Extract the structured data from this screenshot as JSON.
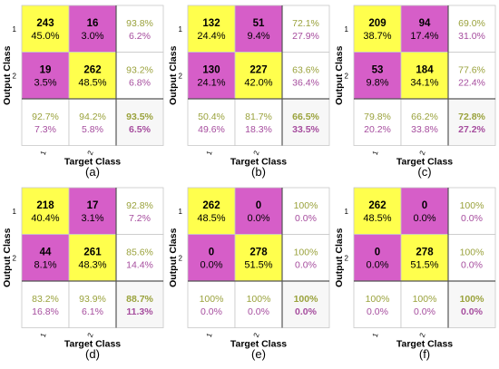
{
  "colors": {
    "correct": "#ffff4d",
    "wrong": "#d65ec8",
    "summary_bg": "#ffffff",
    "total_bg": "#f7f7f7",
    "good_text": "#9aa23c",
    "bad_text": "#a64d9e",
    "grid": "#c8c8c8",
    "total_border": "#555555"
  },
  "chart_data": [
    {
      "type": "heatmap",
      "caption": "(a)",
      "xlabel": "Target Class",
      "ylabel": "Output Class",
      "class_labels": [
        "1",
        "2"
      ],
      "cells": [
        [
          {
            "count": "243",
            "pct": "45.0%"
          },
          {
            "count": "16",
            "pct": "3.0%"
          }
        ],
        [
          {
            "count": "19",
            "pct": "3.5%"
          },
          {
            "count": "262",
            "pct": "48.5%"
          }
        ]
      ],
      "row_summary": [
        [
          "93.8%",
          "6.2%"
        ],
        [
          "93.2%",
          "6.8%"
        ]
      ],
      "col_summary": [
        [
          "92.7%",
          "7.3%"
        ],
        [
          "94.2%",
          "5.8%"
        ]
      ],
      "total": [
        "93.5%",
        "6.5%"
      ]
    },
    {
      "type": "heatmap",
      "caption": "(b)",
      "xlabel": "Target Class",
      "ylabel": "Output Class",
      "class_labels": [
        "1",
        "2"
      ],
      "cells": [
        [
          {
            "count": "132",
            "pct": "24.4%"
          },
          {
            "count": "51",
            "pct": "9.4%"
          }
        ],
        [
          {
            "count": "130",
            "pct": "24.1%"
          },
          {
            "count": "227",
            "pct": "42.0%"
          }
        ]
      ],
      "row_summary": [
        [
          "72.1%",
          "27.9%"
        ],
        [
          "63.6%",
          "36.4%"
        ]
      ],
      "col_summary": [
        [
          "50.4%",
          "49.6%"
        ],
        [
          "81.7%",
          "18.3%"
        ]
      ],
      "total": [
        "66.5%",
        "33.5%"
      ]
    },
    {
      "type": "heatmap",
      "caption": "(c)",
      "xlabel": "Target Class",
      "ylabel": "Output Class",
      "class_labels": [
        "1",
        "2"
      ],
      "cells": [
        [
          {
            "count": "209",
            "pct": "38.7%"
          },
          {
            "count": "94",
            "pct": "17.4%"
          }
        ],
        [
          {
            "count": "53",
            "pct": "9.8%"
          },
          {
            "count": "184",
            "pct": "34.1%"
          }
        ]
      ],
      "row_summary": [
        [
          "69.0%",
          "31.0%"
        ],
        [
          "77.6%",
          "22.4%"
        ]
      ],
      "col_summary": [
        [
          "79.8%",
          "20.2%"
        ],
        [
          "66.2%",
          "33.8%"
        ]
      ],
      "total": [
        "72.8%",
        "27.2%"
      ]
    },
    {
      "type": "heatmap",
      "caption": "(d)",
      "xlabel": "Target Class",
      "ylabel": "Output Class",
      "class_labels": [
        "1",
        "2"
      ],
      "cells": [
        [
          {
            "count": "218",
            "pct": "40.4%"
          },
          {
            "count": "17",
            "pct": "3.1%"
          }
        ],
        [
          {
            "count": "44",
            "pct": "8.1%"
          },
          {
            "count": "261",
            "pct": "48.3%"
          }
        ]
      ],
      "row_summary": [
        [
          "92.8%",
          "7.2%"
        ],
        [
          "85.6%",
          "14.4%"
        ]
      ],
      "col_summary": [
        [
          "83.2%",
          "16.8%"
        ],
        [
          "93.9%",
          "6.1%"
        ]
      ],
      "total": [
        "88.7%",
        "11.3%"
      ]
    },
    {
      "type": "heatmap",
      "caption": "(e)",
      "xlabel": "Target Class",
      "ylabel": "Output Class",
      "class_labels": [
        "1",
        "2"
      ],
      "cells": [
        [
          {
            "count": "262",
            "pct": "48.5%"
          },
          {
            "count": "0",
            "pct": "0.0%"
          }
        ],
        [
          {
            "count": "0",
            "pct": "0.0%"
          },
          {
            "count": "278",
            "pct": "51.5%"
          }
        ]
      ],
      "row_summary": [
        [
          "100%",
          "0.0%"
        ],
        [
          "100%",
          "0.0%"
        ]
      ],
      "col_summary": [
        [
          "100%",
          "0.0%"
        ],
        [
          "100%",
          "0.0%"
        ]
      ],
      "total": [
        "100%",
        "0.0%"
      ]
    },
    {
      "type": "heatmap",
      "caption": "(f)",
      "xlabel": "Target Class",
      "ylabel": "Output Class",
      "class_labels": [
        "1",
        "2"
      ],
      "cells": [
        [
          {
            "count": "262",
            "pct": "48.5%"
          },
          {
            "count": "0",
            "pct": "0.0%"
          }
        ],
        [
          {
            "count": "0",
            "pct": "0.0%"
          },
          {
            "count": "278",
            "pct": "51.5%"
          }
        ]
      ],
      "row_summary": [
        [
          "100%",
          "0.0%"
        ],
        [
          "100%",
          "0.0%"
        ]
      ],
      "col_summary": [
        [
          "100%",
          "0.0%"
        ],
        [
          "100%",
          "0.0%"
        ]
      ],
      "total": [
        "100%",
        "0.0%"
      ]
    }
  ]
}
